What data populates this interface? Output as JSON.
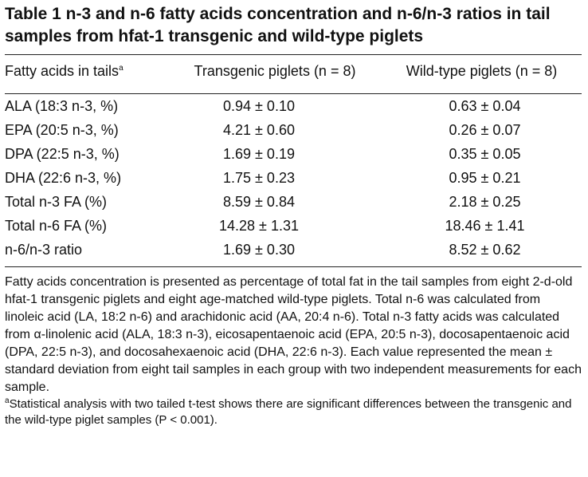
{
  "title": "Table 1  n-3 and n-6 fatty acids concentration and n-6/n-3 ratios in tail samples from hfat-1 transgenic and wild-type piglets",
  "header": {
    "col1": "Fatty acids in tails",
    "col1_sup": "a",
    "col2": "Transgenic piglets (n = 8)",
    "col3": "Wild-type piglets (n = 8)"
  },
  "rows": [
    {
      "label": "ALA (18:3 n-3, %)",
      "transgenic": "0.94 ± 0.10",
      "wildtype": "0.63 ± 0.04"
    },
    {
      "label": "EPA (20:5 n-3, %)",
      "transgenic": "4.21 ± 0.60",
      "wildtype": "0.26 ± 0.07"
    },
    {
      "label": "DPA (22:5 n-3, %)",
      "transgenic": "1.69 ± 0.19",
      "wildtype": "0.35 ± 0.05"
    },
    {
      "label": "DHA (22:6 n-3, %)",
      "transgenic": "1.75 ± 0.23",
      "wildtype": "0.95 ± 0.21"
    },
    {
      "label": "Total n-3 FA (%)",
      "transgenic": "8.59 ± 0.84",
      "wildtype": "2.18 ± 0.25"
    },
    {
      "label": "Total n-6 FA (%)",
      "transgenic": "14.28 ± 1.31",
      "wildtype": "18.46 ± 1.41"
    },
    {
      "label": "n-6/n-3 ratio",
      "transgenic": "1.69 ± 0.30",
      "wildtype": "8.52 ± 0.62"
    }
  ],
  "notes": "Fatty acids concentration is presented as percentage of total fat in the tail samples from eight 2-d-old hfat-1 transgenic piglets and eight age-matched wild-type piglets. Total n-6 was calculated from linoleic acid (LA, 18:2 n-6) and arachidonic acid (AA, 20:4 n-6). Total n-3 fatty acids was calculated from α-linolenic acid (ALA, 18:3 n-3), eicosapentaenoic acid (EPA, 20:5 n-3), docosapentaenoic acid (DPA, 22:5 n-3), and docosahexaenoic acid (DHA, 22:6 n-3). Each value represented the mean ± standard deviation from eight tail samples in each group with two independent measurements for each sample.",
  "footnote_marker": "a",
  "footnote": "Statistical analysis with two tailed t-test shows there are significant differences between the transgenic and the wild-type piglet samples (P < 0.001)."
}
